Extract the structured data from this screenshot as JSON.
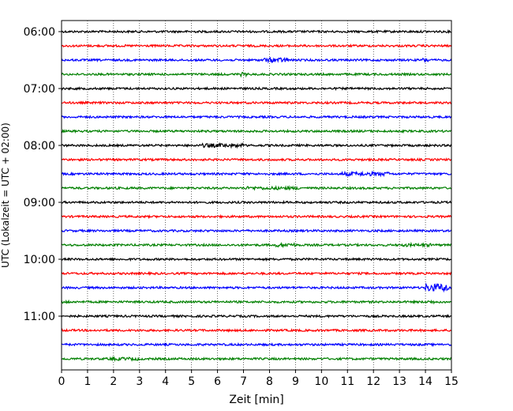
{
  "chart_data": {
    "type": "line",
    "title": "",
    "xlabel": "Zeit  [min]",
    "ylabel": "UTC (Lokalzeit = UTC + 02:00)",
    "xlim": [
      0,
      15
    ],
    "x_ticks": [
      0,
      1,
      2,
      3,
      4,
      5,
      6,
      7,
      8,
      9,
      10,
      11,
      12,
      13,
      14,
      15
    ],
    "x_grid": true,
    "y_tick_labels": [
      "06:00",
      "07:00",
      "08:00",
      "09:00",
      "10:00",
      "11:00"
    ],
    "trace_interval_min": 15,
    "trace_colors": [
      "#000000",
      "#ff0000",
      "#0000ff",
      "#008000"
    ],
    "traces": [
      {
        "time": "06:00",
        "color": "#000000"
      },
      {
        "time": "06:15",
        "color": "#ff0000"
      },
      {
        "time": "06:30",
        "color": "#0000ff"
      },
      {
        "time": "06:45",
        "color": "#008000"
      },
      {
        "time": "07:00",
        "color": "#000000"
      },
      {
        "time": "07:15",
        "color": "#ff0000"
      },
      {
        "time": "07:30",
        "color": "#0000ff"
      },
      {
        "time": "07:45",
        "color": "#008000"
      },
      {
        "time": "08:00",
        "color": "#000000"
      },
      {
        "time": "08:15",
        "color": "#ff0000"
      },
      {
        "time": "08:30",
        "color": "#0000ff"
      },
      {
        "time": "08:45",
        "color": "#008000"
      },
      {
        "time": "09:00",
        "color": "#000000"
      },
      {
        "time": "09:15",
        "color": "#ff0000"
      },
      {
        "time": "09:30",
        "color": "#0000ff"
      },
      {
        "time": "09:45",
        "color": "#008000"
      },
      {
        "time": "10:00",
        "color": "#000000"
      },
      {
        "time": "10:15",
        "color": "#ff0000"
      },
      {
        "time": "10:30",
        "color": "#0000ff"
      },
      {
        "time": "10:45",
        "color": "#008000"
      },
      {
        "time": "11:00",
        "color": "#000000"
      },
      {
        "time": "11:15",
        "color": "#ff0000"
      },
      {
        "time": "11:30",
        "color": "#0000ff"
      },
      {
        "time": "11:45",
        "color": "#008000"
      }
    ]
  }
}
